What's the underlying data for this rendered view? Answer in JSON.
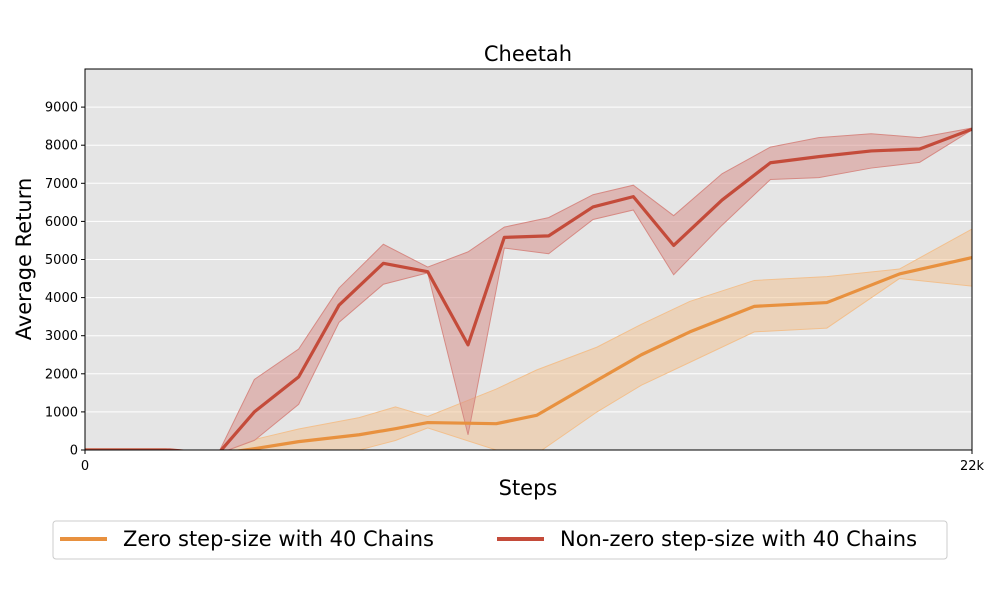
{
  "chart_data": {
    "type": "line",
    "title": "Cheetah",
    "xlabel": "Steps",
    "ylabel": "Average Return",
    "xlim": [
      0,
      22000
    ],
    "ylim": [
      0,
      10000
    ],
    "x_tick_values": [
      0,
      22000
    ],
    "x_tick_labels": [
      "0",
      "22k"
    ],
    "y_ticks": [
      0,
      1000,
      2000,
      3000,
      4000,
      5000,
      6000,
      7000,
      8000,
      9000
    ],
    "grid": true,
    "legend_position": "bottom",
    "background_color": "#e5e5e5",
    "series": [
      {
        "name": "Zero step-size with 40 Chains",
        "color": "#e8913f",
        "band_color": "#f2c08e",
        "x": [
          0,
          2000,
          3300,
          4300,
          5300,
          6800,
          7700,
          8500,
          10200,
          11200,
          12700,
          13800,
          15000,
          16600,
          18400,
          20200,
          22000
        ],
        "y": [
          0,
          0,
          -100,
          50,
          220,
          400,
          560,
          720,
          690,
          910,
          1830,
          2500,
          3100,
          3770,
          3870,
          4620,
          5050
        ],
        "lower": [
          0,
          0,
          -100,
          -250,
          -100,
          0,
          250,
          580,
          0,
          -100,
          1000,
          1700,
          2300,
          3100,
          3200,
          4500,
          4300
        ],
        "upper": [
          0,
          0,
          -100,
          300,
          550,
          850,
          1130,
          880,
          1600,
          2100,
          2700,
          3300,
          3900,
          4450,
          4550,
          4750,
          5800
        ]
      },
      {
        "name": "Non-zero step-size with 40 Chains",
        "color": "#c44b3a",
        "band_color": "#d68a84",
        "x": [
          0,
          2100,
          3300,
          4200,
          5300,
          6300,
          7400,
          8500,
          9500,
          10400,
          11500,
          12600,
          13600,
          14600,
          15800,
          17000,
          18200,
          19500,
          20700,
          22000
        ],
        "y": [
          0,
          0,
          -100,
          1000,
          1920,
          3800,
          4900,
          4680,
          2760,
          5580,
          5620,
          6380,
          6650,
          5370,
          6560,
          7540,
          7700,
          7850,
          7900,
          8420
        ],
        "lower": [
          0,
          0,
          -100,
          250,
          1200,
          3350,
          4350,
          4650,
          400,
          5300,
          5150,
          6050,
          6300,
          4600,
          5900,
          7100,
          7150,
          7400,
          7550,
          8400
        ],
        "upper": [
          0,
          0,
          -100,
          1850,
          2650,
          4250,
          5400,
          4800,
          5200,
          5850,
          6100,
          6700,
          6950,
          6150,
          7250,
          7950,
          8200,
          8300,
          8200,
          8450
        ]
      }
    ]
  }
}
